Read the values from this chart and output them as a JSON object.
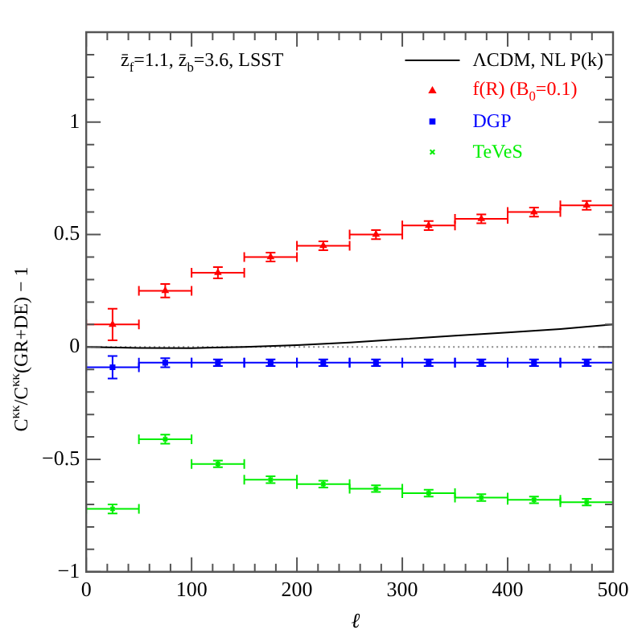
{
  "chart_data": {
    "type": "scatter",
    "xlabel": "ℓ",
    "ylabel": "C$^{κκ}$/C$^{κκ}$(GR+DE) − 1",
    "annotations": [
      "z̄$_{f}$=1.1, z̄$_{b}$=3.6, LSST"
    ],
    "xlim": [
      0,
      500
    ],
    "ylim": [
      -1,
      1.4
    ],
    "xticks": [
      0,
      100,
      200,
      300,
      400,
      500
    ],
    "yticks": [
      -1,
      -0.5,
      0,
      0.5,
      1
    ],
    "ref_lines": [
      {
        "axis": "y",
        "value": 0,
        "color": "#888888",
        "line_style": "dotted"
      }
    ],
    "legend": "top right",
    "grid": false,
    "series": [
      {
        "name": "ΛCDM, NL P(k)",
        "type": "line",
        "color": "#000000",
        "marker": "none",
        "line_style": "solid",
        "x": [
          0,
          50,
          100,
          150,
          200,
          250,
          300,
          350,
          400,
          450,
          500
        ],
        "values": [
          0,
          -0.004,
          -0.005,
          0,
          0.008,
          0.02,
          0.035,
          0.05,
          0.065,
          0.08,
          0.1
        ]
      },
      {
        "name": "f(R) (B$_{0}$=0.1)",
        "type": "scatter",
        "color": "#ff0000",
        "marker": "triangle",
        "x": [
          25,
          75,
          125,
          175,
          225,
          275,
          325,
          375,
          425,
          475
        ],
        "values": [
          0.1,
          0.25,
          0.33,
          0.4,
          0.45,
          0.5,
          0.54,
          0.57,
          0.6,
          0.63
        ],
        "errors": [
          0.07,
          0.03,
          0.025,
          0.02,
          0.02,
          0.02,
          0.02,
          0.02,
          0.02,
          0.02
        ],
        "xerrors": [
          25,
          25,
          25,
          25,
          25,
          25,
          25,
          25,
          25,
          25
        ]
      },
      {
        "name": "DGP",
        "type": "scatter",
        "color": "#0000ff",
        "marker": "square",
        "x": [
          25,
          75,
          125,
          175,
          225,
          275,
          325,
          375,
          425,
          475
        ],
        "values": [
          -0.09,
          -0.07,
          -0.07,
          -0.07,
          -0.07,
          -0.07,
          -0.07,
          -0.07,
          -0.07,
          -0.07
        ],
        "errors": [
          0.05,
          0.02,
          0.015,
          0.015,
          0.015,
          0.015,
          0.015,
          0.015,
          0.015,
          0.015
        ],
        "xerrors": [
          25,
          25,
          25,
          25,
          25,
          25,
          25,
          25,
          25,
          25
        ]
      },
      {
        "name": "TeVeS",
        "type": "scatter",
        "color": "#00ee00",
        "marker": "cross",
        "x": [
          25,
          75,
          125,
          175,
          225,
          275,
          325,
          375,
          425,
          475
        ],
        "values": [
          -0.72,
          -0.41,
          -0.52,
          -0.59,
          -0.61,
          -0.63,
          -0.65,
          -0.67,
          -0.68,
          -0.69
        ],
        "errors": [
          0.02,
          0.02,
          0.015,
          0.015,
          0.015,
          0.015,
          0.015,
          0.015,
          0.015,
          0.015
        ],
        "xerrors": [
          25,
          25,
          25,
          25,
          25,
          25,
          25,
          25,
          25,
          25
        ]
      }
    ]
  }
}
